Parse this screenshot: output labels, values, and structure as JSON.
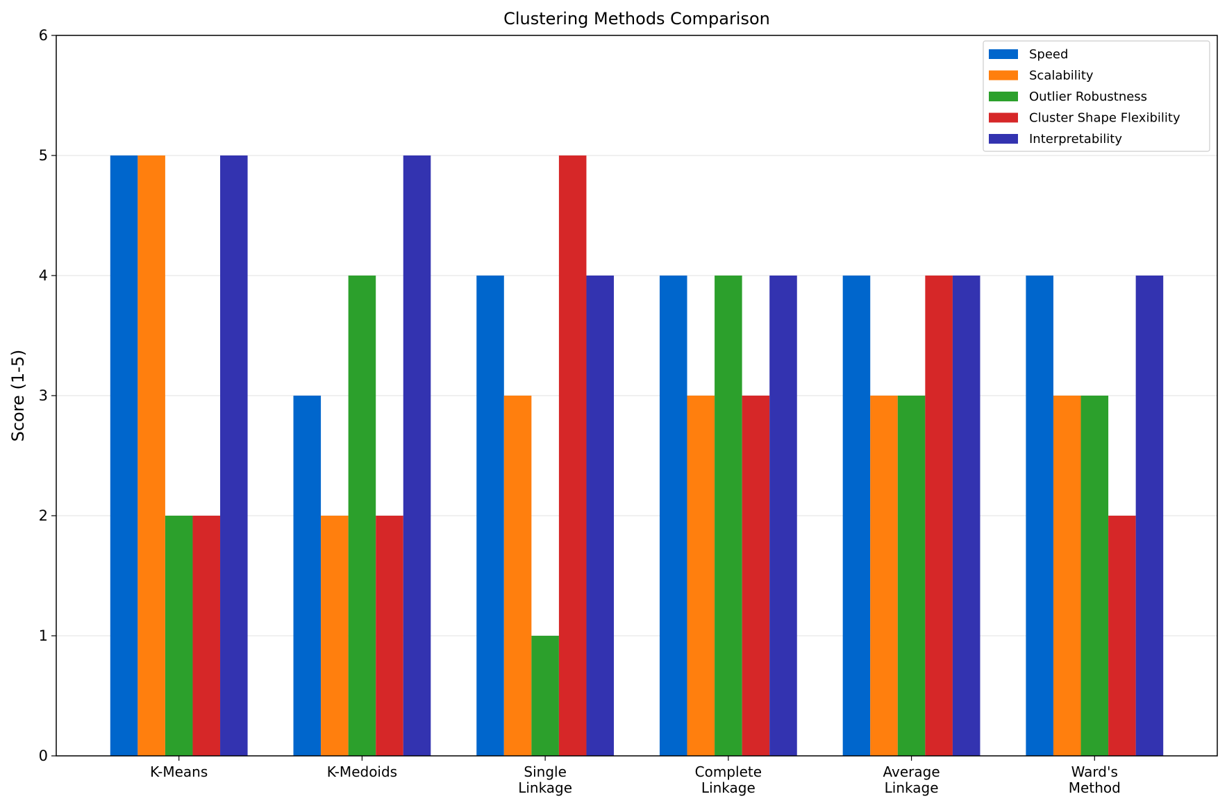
{
  "chart_data": {
    "type": "bar",
    "title": "Clustering Methods Comparison",
    "y_label": "Score (1-5)",
    "categories": [
      "K-Means",
      "K-Medoids",
      "Single\nLinkage",
      "Complete\nLinkage",
      "Average\nLinkage",
      "Ward's\nMethod"
    ],
    "series": [
      {
        "name": "Speed",
        "color": "#0066cc",
        "values": [
          5,
          3,
          4,
          4,
          4,
          4
        ]
      },
      {
        "name": "Scalability",
        "color": "#ff7f0e",
        "values": [
          5,
          2,
          3,
          3,
          3,
          3
        ]
      },
      {
        "name": "Outlier Robustness",
        "color": "#2ca02c",
        "values": [
          2,
          4,
          1,
          4,
          3,
          3
        ]
      },
      {
        "name": "Cluster Shape Flexibility",
        "color": "#d62728",
        "values": [
          2,
          2,
          5,
          3,
          4,
          2
        ]
      },
      {
        "name": "Interpretability",
        "color": "#3333b0",
        "values": [
          5,
          5,
          4,
          4,
          4,
          4
        ]
      }
    ],
    "ylim": [
      0,
      6
    ],
    "yticks": [
      0,
      1,
      2,
      3,
      4,
      5,
      6
    ],
    "grid": true,
    "legend": "upper right"
  }
}
